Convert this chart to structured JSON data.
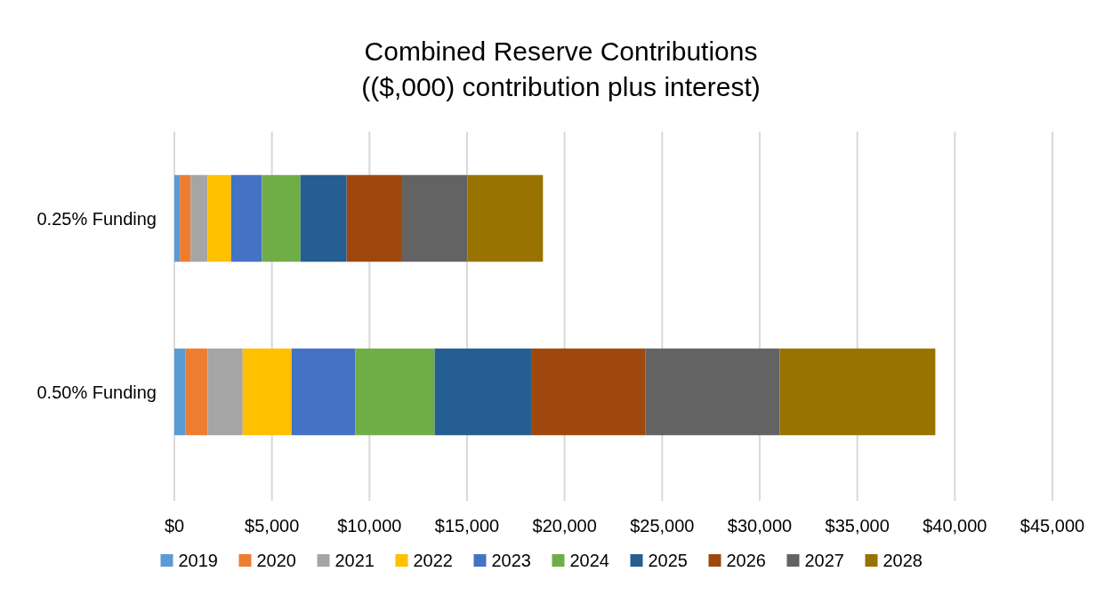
{
  "chart_data": {
    "type": "bar",
    "orientation": "horizontal",
    "stacked": true,
    "title": "Combined Reserve Contributions\n(($,000) contribution plus interest)",
    "categories": [
      "0.25% Funding",
      "0.50% Funding"
    ],
    "xlim": [
      0,
      45000
    ],
    "xticks": [
      {
        "value": 0,
        "label": "$0"
      },
      {
        "value": 5000,
        "label": "$5,000"
      },
      {
        "value": 10000,
        "label": "$10,000"
      },
      {
        "value": 15000,
        "label": "$15,000"
      },
      {
        "value": 20000,
        "label": "$20,000"
      },
      {
        "value": 25000,
        "label": "$25,000"
      },
      {
        "value": 30000,
        "label": "$30,000"
      },
      {
        "value": 35000,
        "label": "$35,000"
      },
      {
        "value": 40000,
        "label": "$40,000"
      },
      {
        "value": 45000,
        "label": "$45,000"
      }
    ],
    "grid": "x",
    "legend": "bottom",
    "series": [
      {
        "name": "2019",
        "color": "#5b9bd5",
        "values": [
          280,
          560
        ]
      },
      {
        "name": "2020",
        "color": "#ed7d31",
        "values": [
          550,
          1150
        ]
      },
      {
        "name": "2021",
        "color": "#a5a5a5",
        "values": [
          870,
          1790
        ]
      },
      {
        "name": "2022",
        "color": "#ffc000",
        "values": [
          1210,
          2510
        ]
      },
      {
        "name": "2023",
        "color": "#4472c4",
        "values": [
          1580,
          3260
        ]
      },
      {
        "name": "2024",
        "color": "#70ad47",
        "values": [
          1970,
          4070
        ]
      },
      {
        "name": "2025",
        "color": "#255e91",
        "values": [
          2370,
          4940
        ]
      },
      {
        "name": "2026",
        "color": "#9e480e",
        "values": [
          2840,
          5870
        ]
      },
      {
        "name": "2027",
        "color": "#636363",
        "values": [
          3350,
          6880
        ]
      },
      {
        "name": "2028",
        "color": "#997300",
        "values": [
          3870,
          7970
        ]
      }
    ]
  }
}
